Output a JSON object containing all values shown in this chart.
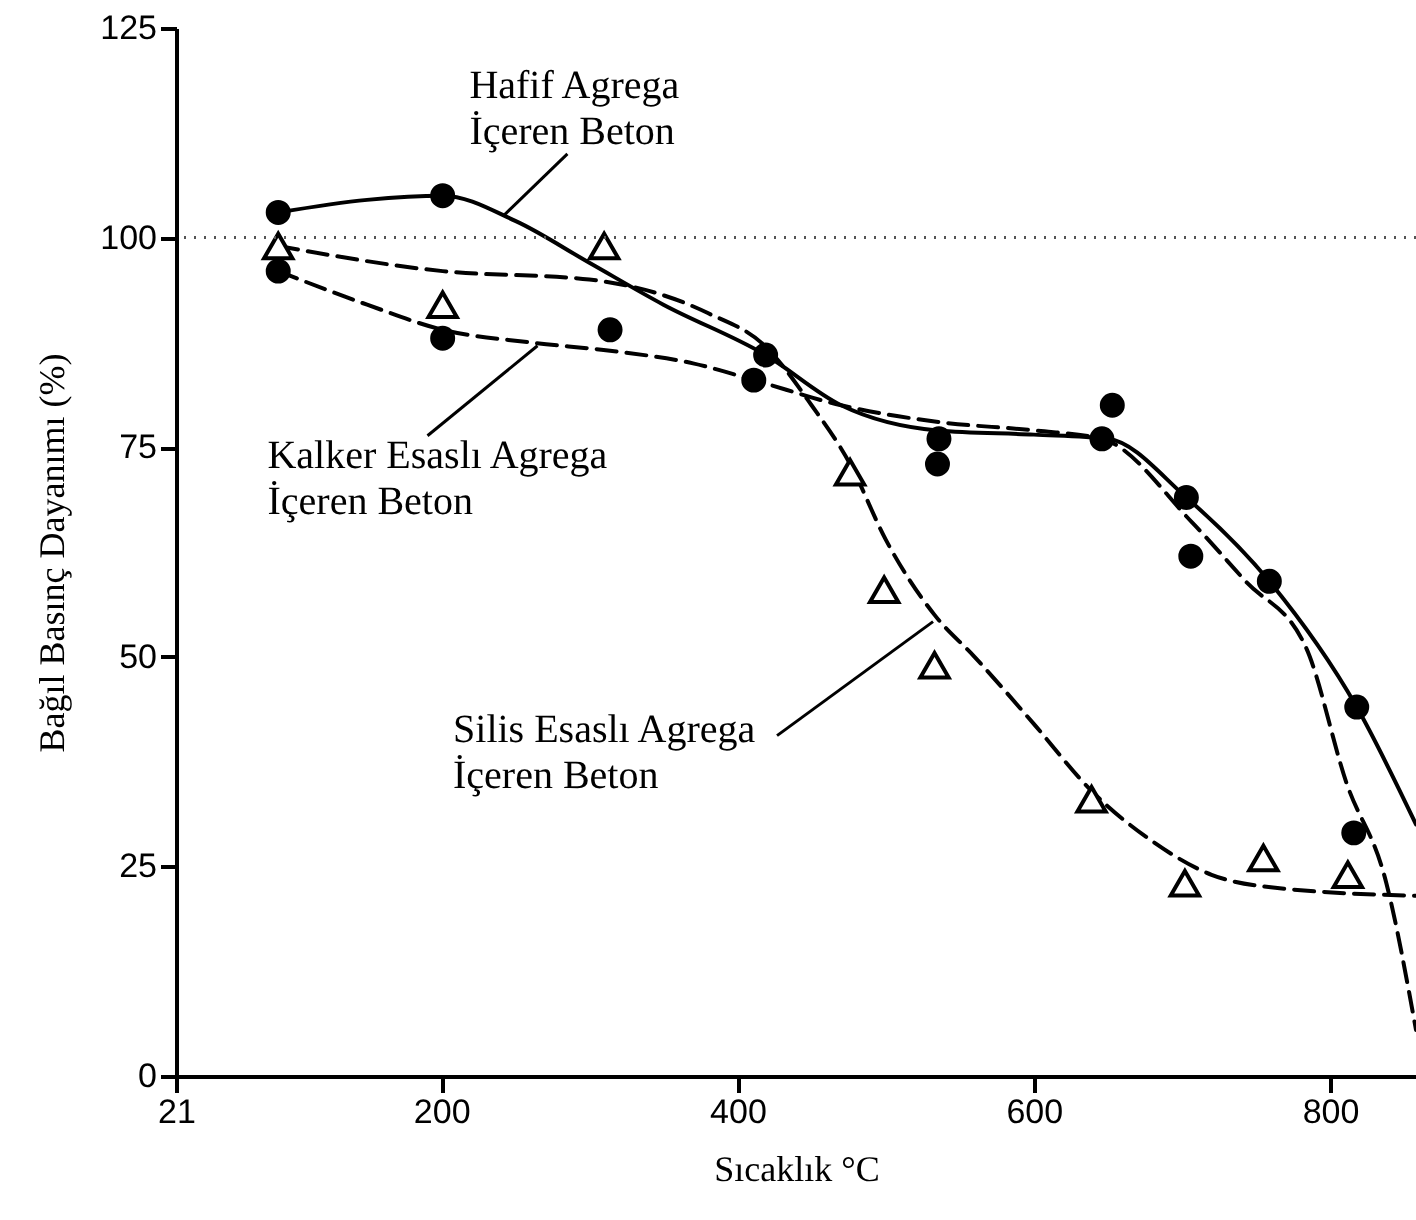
{
  "chart_data": {
    "type": "line",
    "xlabel": "Sıcaklık °C",
    "ylabel": "Bağıl Basınç Dayanımı (%)",
    "xlim": [
      21,
      858
    ],
    "ylim": [
      0,
      125
    ],
    "xticks": [
      21,
      200,
      400,
      600,
      800
    ],
    "yticks": [
      0,
      25,
      50,
      75,
      100,
      125
    ],
    "series": [
      {
        "type": "line",
        "color": "#000000",
        "line_style": "solid",
        "marker": "none",
        "x": [
          90,
          150,
          201,
          250,
          300,
          350,
          419,
          470,
          535,
          600,
          650,
          703,
          759,
          818,
          858
        ],
        "values": [
          103,
          104.5,
          105,
          102,
          97,
          92,
          86,
          80,
          77,
          76.5,
          76,
          69,
          59,
          44,
          30
        ]
      },
      {
        "type": "line",
        "color": "#000000",
        "line_style": "dashed",
        "marker": "none",
        "x": [
          90,
          150,
          201,
          260,
          314,
          370,
          411,
          470,
          536,
          600,
          646,
          707,
          743,
          784,
          811,
          838,
          858
        ],
        "values": [
          96,
          92,
          89,
          87.5,
          86.5,
          85,
          83,
          80,
          78,
          77,
          76,
          66,
          59,
          51,
          35,
          23,
          5.5
        ]
      },
      {
        "type": "line",
        "color": "#000000",
        "line_style": "dashed",
        "marker": "none",
        "x": [
          90,
          201,
          300,
          380,
          419,
          450,
          476,
          500,
          533,
          560,
          600,
          639,
          680,
          720,
          760,
          858
        ],
        "values": [
          99,
          96,
          95,
          91,
          87,
          80,
          73,
          64,
          55,
          50,
          42,
          34,
          28,
          24,
          22.5,
          21.5
        ]
      },
      {
        "type": "scatter",
        "color": "#000000",
        "marker": "circle",
        "x": [
          90,
          201,
          419,
          535,
          653,
          703,
          759,
          818
        ],
        "values": [
          103,
          105,
          86,
          73,
          80,
          69,
          59,
          44
        ]
      },
      {
        "type": "scatter",
        "color": "#000000",
        "marker": "circle",
        "x": [
          90,
          201,
          314,
          411,
          536,
          646,
          706,
          816
        ],
        "values": [
          96,
          88,
          89,
          83,
          76,
          76,
          62,
          29
        ]
      },
      {
        "type": "scatter",
        "color": "#000000",
        "marker": "triangle",
        "x": [
          90,
          201,
          310,
          476,
          499,
          533,
          639,
          702,
          755,
          812
        ],
        "values": [
          99,
          92,
          99,
          72,
          58,
          49,
          33,
          23,
          26,
          24
        ]
      }
    ],
    "ref_lines": [
      {
        "axis": "y",
        "value": 100,
        "line_style": "dotted",
        "color": "#555555"
      }
    ],
    "annotations": [
      {
        "text": "Hafif Agrega\nİçeren Beton",
        "x": 242,
        "y": 102.6
      },
      {
        "text": "Kalker Esaslı Agrega\nİçeren Beton",
        "x": 265,
        "y": 87.1
      },
      {
        "text": "Silis Esaslı Agrega\nİçeren Beton",
        "x": 532,
        "y": 54.2
      }
    ]
  }
}
